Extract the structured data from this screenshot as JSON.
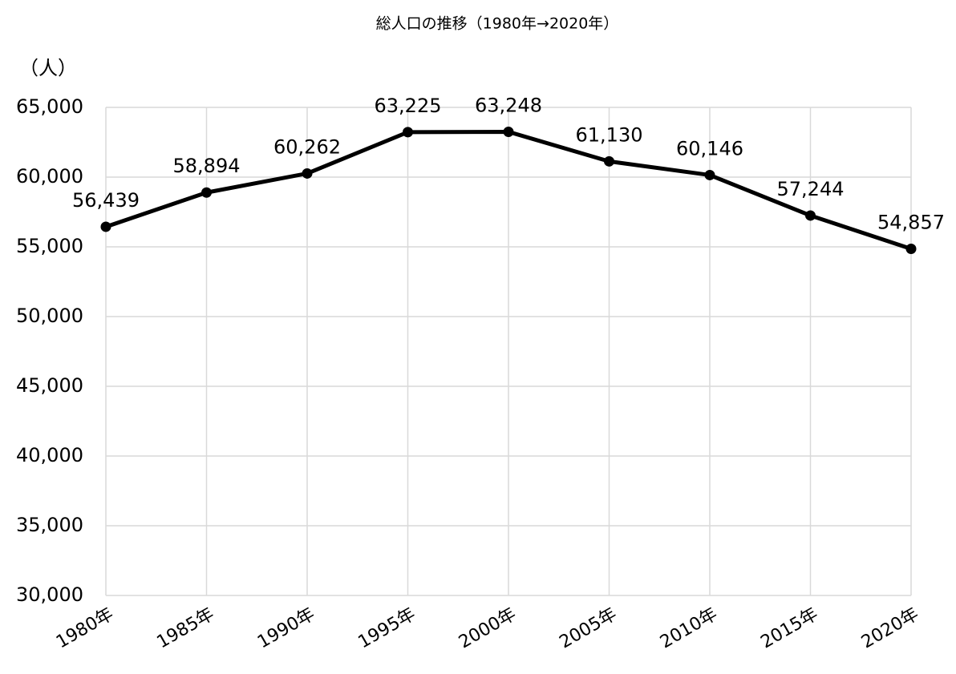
{
  "chart_data": {
    "type": "line",
    "title": "総人口の推移（1980年→2020年）",
    "y_label": "（人）",
    "categories": [
      "1980年",
      "1985年",
      "1990年",
      "1995年",
      "2000年",
      "2005年",
      "2010年",
      "2015年",
      "2020年"
    ],
    "series": [
      {
        "name": "総人口",
        "color": "#000000",
        "values": [
          56439,
          58894,
          60262,
          63225,
          63248,
          61130,
          60146,
          57244,
          54857
        ],
        "value_labels": [
          "56,439",
          "58,894",
          "60,262",
          "63,225",
          "63,248",
          "61,130",
          "60,146",
          "57,244",
          "54,857"
        ]
      }
    ],
    "ylim": [
      30000,
      65000
    ],
    "yticks": [
      {
        "value": 30000,
        "label": "30,000"
      },
      {
        "value": 35000,
        "label": "35,000"
      },
      {
        "value": 40000,
        "label": "40,000"
      },
      {
        "value": 45000,
        "label": "45,000"
      },
      {
        "value": 50000,
        "label": "50,000"
      },
      {
        "value": 55000,
        "label": "55,000"
      },
      {
        "value": 60000,
        "label": "60,000"
      },
      {
        "value": 65000,
        "label": "65,000"
      }
    ],
    "grid": true
  }
}
